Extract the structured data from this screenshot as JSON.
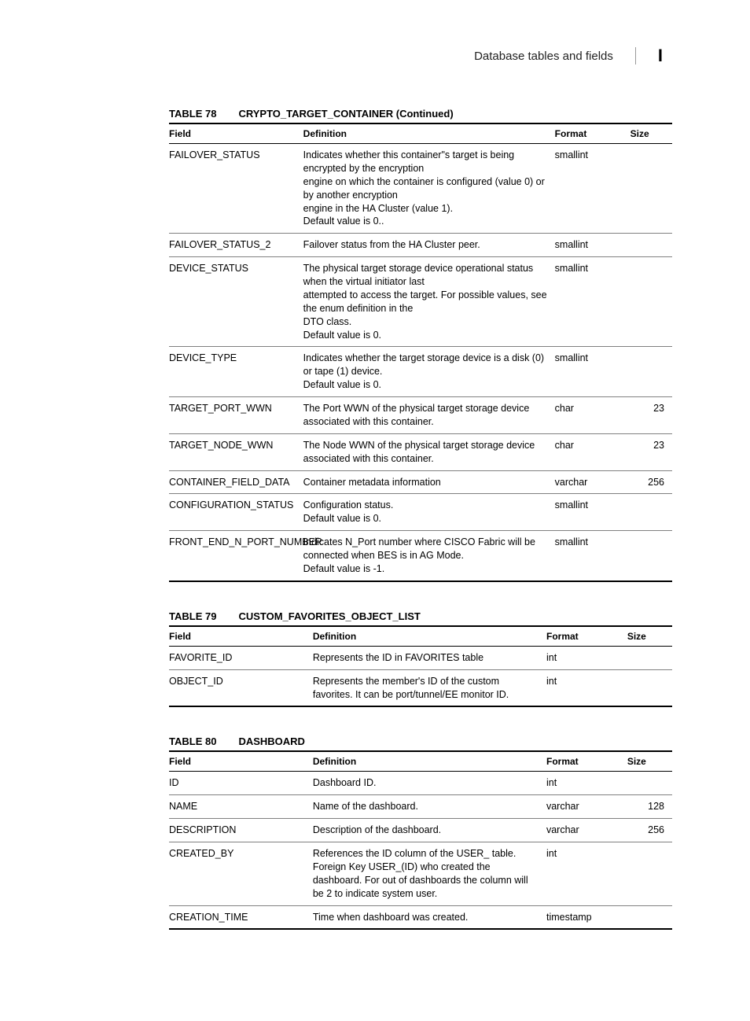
{
  "header": {
    "title": "Database tables and fields",
    "mark": "I"
  },
  "colHeaders": {
    "field": "Field",
    "definition": "Definition",
    "format": "Format",
    "size": "Size"
  },
  "table78": {
    "number": "TABLE 78",
    "title": "CRYPTO_TARGET_CONTAINER (Continued)",
    "rows": [
      {
        "field": "FAILOVER_STATUS",
        "definition": "Indicates whether this container\"s target is being encrypted by the encryption\nengine on which the container is configured (value 0) or by another encryption\nengine in the HA Cluster (value 1).\nDefault value is 0..",
        "format": "smallint",
        "size": ""
      },
      {
        "field": "FAILOVER_STATUS_2",
        "definition": "Failover status from the HA Cluster peer.",
        "format": "smallint",
        "size": ""
      },
      {
        "field": "DEVICE_STATUS",
        "definition": "The physical target storage device operational status when the virtual initiator last\nattempted to access the target.  For possible values, see the enum definition in the\nDTO class.\nDefault value is 0.",
        "format": "smallint",
        "size": ""
      },
      {
        "field": "DEVICE_TYPE",
        "definition": "Indicates whether the target storage device is a disk (0) or tape (1) device.\nDefault value is 0.",
        "format": "smallint",
        "size": ""
      },
      {
        "field": "TARGET_PORT_WWN",
        "definition": "The Port WWN of the physical target storage device associated with this container.",
        "format": "char",
        "size": "23"
      },
      {
        "field": "TARGET_NODE_WWN",
        "definition": "The Node WWN of the physical target storage device associated with this container.",
        "format": "char",
        "size": "23"
      },
      {
        "field": "CONTAINER_FIELD_DATA",
        "definition": "Container metadata information",
        "format": "varchar",
        "size": "256"
      },
      {
        "field": "CONFIGURATION_STATUS",
        "definition": "Configuration status.\nDefault value is 0.",
        "format": "smallint",
        "size": ""
      },
      {
        "field": "FRONT_END_N_PORT_NUMBER",
        "definition": "Indicates N_Port number where CISCO Fabric will be connected when BES is in AG Mode.\nDefault value is -1.",
        "format": "smallint",
        "size": ""
      }
    ]
  },
  "table79": {
    "number": "TABLE 79",
    "title": "CUSTOM_FAVORITES_OBJECT_LIST",
    "rows": [
      {
        "field": "FAVORITE_ID",
        "definition": "Represents the ID in FAVORITES table",
        "format": "int",
        "size": ""
      },
      {
        "field": "OBJECT_ID",
        "definition": "Represents the member's ID of the custom favorites. It can be port/tunnel/EE monitor ID.",
        "format": "int",
        "size": ""
      }
    ]
  },
  "table80": {
    "number": "TABLE 80",
    "title": "DASHBOARD",
    "rows": [
      {
        "field": "ID",
        "definition": "Dashboard ID.",
        "format": "int",
        "size": ""
      },
      {
        "field": "NAME",
        "definition": "Name of the dashboard.",
        "format": "varchar",
        "size": "128"
      },
      {
        "field": "DESCRIPTION",
        "definition": "Description of the dashboard.",
        "format": "varchar",
        "size": "256"
      },
      {
        "field": "CREATED_BY",
        "definition": "References the ID column of the USER_ table. Foreign Key USER_(ID) who created the dashboard. For out of dashboards the column will be 2 to indicate system user.",
        "format": "int",
        "size": ""
      },
      {
        "field": "CREATION_TIME",
        "definition": "Time when dashboard was created.",
        "format": "timestamp",
        "size": ""
      }
    ]
  }
}
